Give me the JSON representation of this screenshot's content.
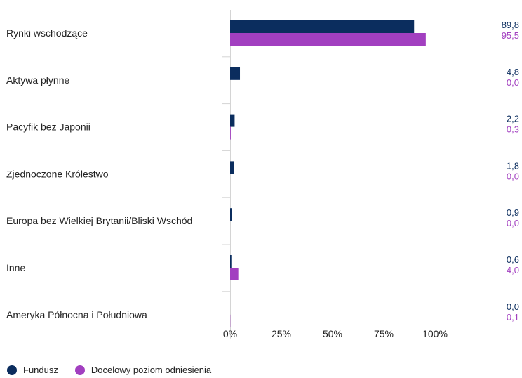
{
  "chart_data": {
    "type": "bar",
    "orientation": "horizontal",
    "categories": [
      "Rynki wschodzące",
      "Aktywa płynne",
      "Pacyfik bez Japonii",
      "Zjednoczone Królestwo",
      "Europa bez Wielkiej Brytanii/Bliski Wschód",
      "Inne",
      "Ameryka Północna i Południowa"
    ],
    "series": [
      {
        "name": "Fundusz",
        "color": "#0b2d5e",
        "values": [
          89.8,
          4.8,
          2.2,
          1.8,
          0.9,
          0.6,
          0.0
        ],
        "labels": [
          "89,8",
          "4,8",
          "2,2",
          "1,8",
          "0,9",
          "0,6",
          "0,0"
        ]
      },
      {
        "name": "Docelowy poziom odniesienia",
        "color": "#a23fc0",
        "values": [
          95.5,
          0.0,
          0.3,
          0.0,
          0.0,
          4.0,
          0.1
        ],
        "labels": [
          "95,5",
          "0,0",
          "0,3",
          "0,0",
          "0,0",
          "4,0",
          "0,1"
        ]
      }
    ],
    "xticks": [
      "0%",
      "25%",
      "50%",
      "75%",
      "100%"
    ],
    "xtick_values": [
      0,
      25,
      50,
      75,
      100
    ],
    "xlim": [
      0,
      125
    ],
    "grid": false,
    "legend_position": "bottom-left"
  }
}
